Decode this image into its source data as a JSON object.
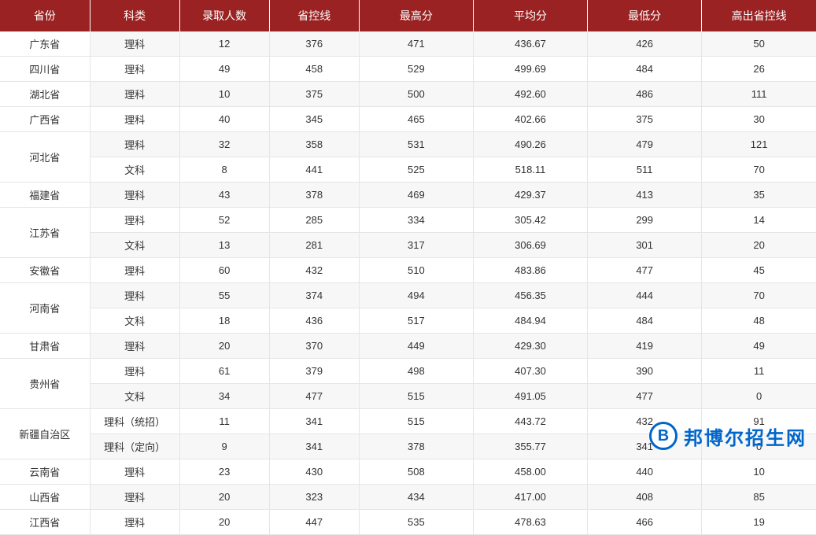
{
  "table": {
    "header_bg": "#9a2222",
    "header_color": "#ffffff",
    "row_odd_bg": "#f7f7f7",
    "row_even_bg": "#ffffff",
    "border_color": "#e5e5e5",
    "text_color": "#333333",
    "font_size_header": 14,
    "font_size_cell": 13,
    "columns": [
      {
        "key": "province",
        "label": "省份",
        "width": "11%"
      },
      {
        "key": "subject",
        "label": "科类",
        "width": "11%"
      },
      {
        "key": "admitted",
        "label": "录取人数",
        "width": "11%"
      },
      {
        "key": "cutoff",
        "label": "省控线",
        "width": "11%"
      },
      {
        "key": "max",
        "label": "最高分",
        "width": "14%"
      },
      {
        "key": "avg",
        "label": "平均分",
        "width": "14%"
      },
      {
        "key": "min",
        "label": "最低分",
        "width": "14%"
      },
      {
        "key": "above",
        "label": "高出省控线",
        "width": "14%"
      }
    ],
    "rows": [
      {
        "province": "广东省",
        "rowspan": 1,
        "subject": "理科",
        "admitted": "12",
        "cutoff": "376",
        "max": "471",
        "avg": "436.67",
        "min": "426",
        "above": "50"
      },
      {
        "province": "四川省",
        "rowspan": 1,
        "subject": "理科",
        "admitted": "49",
        "cutoff": "458",
        "max": "529",
        "avg": "499.69",
        "min": "484",
        "above": "26"
      },
      {
        "province": "湖北省",
        "rowspan": 1,
        "subject": "理科",
        "admitted": "10",
        "cutoff": "375",
        "max": "500",
        "avg": "492.60",
        "min": "486",
        "above": "111"
      },
      {
        "province": "广西省",
        "rowspan": 1,
        "subject": "理科",
        "admitted": "40",
        "cutoff": "345",
        "max": "465",
        "avg": "402.66",
        "min": "375",
        "above": "30"
      },
      {
        "province": "河北省",
        "rowspan": 2,
        "subject": "理科",
        "admitted": "32",
        "cutoff": "358",
        "max": "531",
        "avg": "490.26",
        "min": "479",
        "above": "121"
      },
      {
        "province": null,
        "rowspan": 0,
        "subject": "文科",
        "admitted": "8",
        "cutoff": "441",
        "max": "525",
        "avg": "518.11",
        "min": "511",
        "above": "70"
      },
      {
        "province": "福建省",
        "rowspan": 1,
        "subject": "理科",
        "admitted": "43",
        "cutoff": "378",
        "max": "469",
        "avg": "429.37",
        "min": "413",
        "above": "35"
      },
      {
        "province": "江苏省",
        "rowspan": 2,
        "subject": "理科",
        "admitted": "52",
        "cutoff": "285",
        "max": "334",
        "avg": "305.42",
        "min": "299",
        "above": "14"
      },
      {
        "province": null,
        "rowspan": 0,
        "subject": "文科",
        "admitted": "13",
        "cutoff": "281",
        "max": "317",
        "avg": "306.69",
        "min": "301",
        "above": "20"
      },
      {
        "province": "安徽省",
        "rowspan": 1,
        "subject": "理科",
        "admitted": "60",
        "cutoff": "432",
        "max": "510",
        "avg": "483.86",
        "min": "477",
        "above": "45"
      },
      {
        "province": "河南省",
        "rowspan": 2,
        "subject": "理科",
        "admitted": "55",
        "cutoff": "374",
        "max": "494",
        "avg": "456.35",
        "min": "444",
        "above": "70"
      },
      {
        "province": null,
        "rowspan": 0,
        "subject": "文科",
        "admitted": "18",
        "cutoff": "436",
        "max": "517",
        "avg": "484.94",
        "min": "484",
        "above": "48"
      },
      {
        "province": "甘肃省",
        "rowspan": 1,
        "subject": "理科",
        "admitted": "20",
        "cutoff": "370",
        "max": "449",
        "avg": "429.30",
        "min": "419",
        "above": "49"
      },
      {
        "province": "贵州省",
        "rowspan": 2,
        "subject": "理科",
        "admitted": "61",
        "cutoff": "379",
        "max": "498",
        "avg": "407.30",
        "min": "390",
        "above": "11"
      },
      {
        "province": null,
        "rowspan": 0,
        "subject": "文科",
        "admitted": "34",
        "cutoff": "477",
        "max": "515",
        "avg": "491.05",
        "min": "477",
        "above": "0"
      },
      {
        "province": "新疆自治区",
        "rowspan": 2,
        "subject": "理科（统招）",
        "admitted": "11",
        "cutoff": "341",
        "max": "515",
        "avg": "443.72",
        "min": "432",
        "above": "91"
      },
      {
        "province": null,
        "rowspan": 0,
        "subject": "理科（定向）",
        "admitted": "9",
        "cutoff": "341",
        "max": "378",
        "avg": "355.77",
        "min": "341",
        "above": "0"
      },
      {
        "province": "云南省",
        "rowspan": 1,
        "subject": "理科",
        "admitted": "23",
        "cutoff": "430",
        "max": "508",
        "avg": "458.00",
        "min": "440",
        "above": "10"
      },
      {
        "province": "山西省",
        "rowspan": 1,
        "subject": "理科",
        "admitted": "20",
        "cutoff": "323",
        "max": "434",
        "avg": "417.00",
        "min": "408",
        "above": "85"
      },
      {
        "province": "江西省",
        "rowspan": 1,
        "subject": "理科",
        "admitted": "20",
        "cutoff": "447",
        "max": "535",
        "avg": "478.63",
        "min": "466",
        "above": "19"
      }
    ]
  },
  "watermark": {
    "logo_letter": "B",
    "text": "邦博尔招生网",
    "color": "#0066cc"
  }
}
